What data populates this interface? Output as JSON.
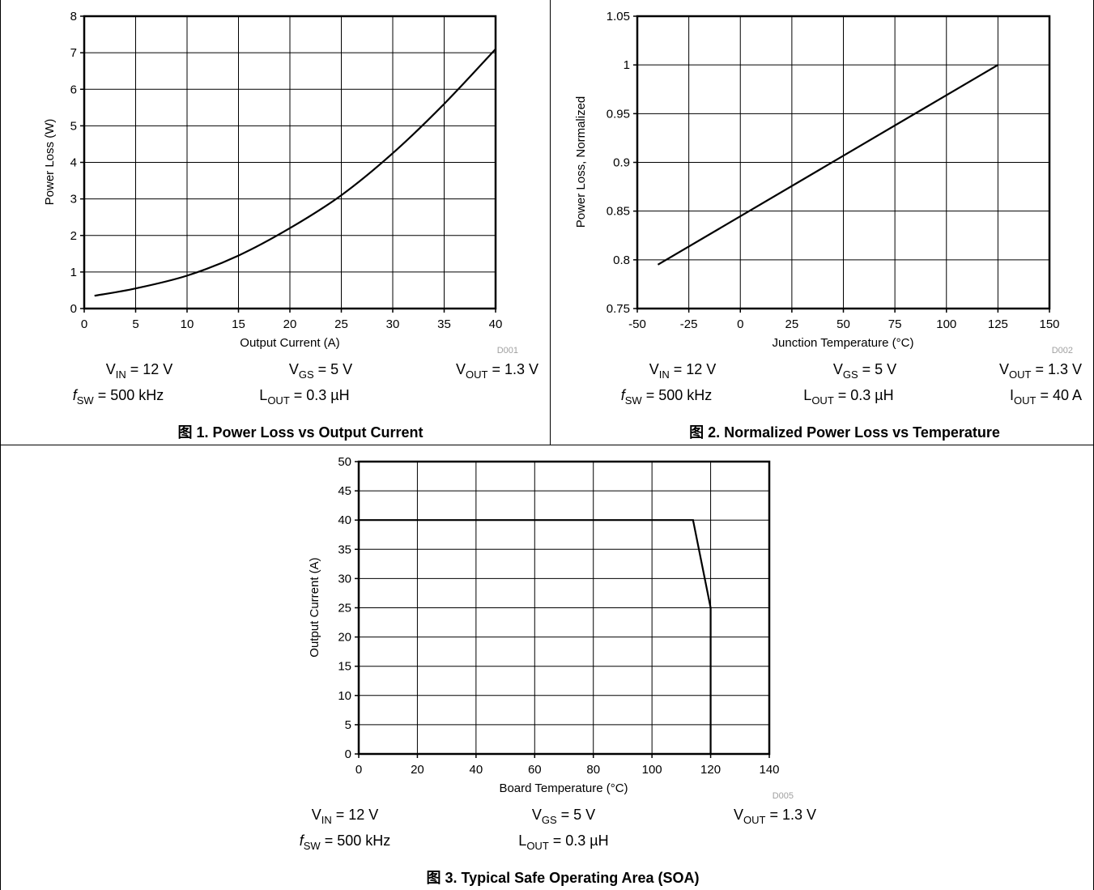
{
  "figures": [
    {
      "code": "D001",
      "caption": "图 1. Power Loss vs Output Current",
      "conditions": [
        {
          "main": "V",
          "sub": "IN",
          "rest": " = 12 V"
        },
        {
          "main": "V",
          "sub": "GS",
          "rest": " = 5 V"
        },
        {
          "main": "V",
          "sub": "OUT",
          "rest": " = 1.3 V"
        },
        {
          "main": "f",
          "sub": "SW",
          "rest": " = 500 kHz",
          "italic": true
        },
        {
          "main": "L",
          "sub": "OUT",
          "rest": " = 0.3 µH"
        }
      ]
    },
    {
      "code": "D002",
      "caption": "图 2. Normalized Power Loss vs Temperature",
      "conditions": [
        {
          "main": "V",
          "sub": "IN",
          "rest": " = 12 V"
        },
        {
          "main": "V",
          "sub": "GS",
          "rest": " = 5 V"
        },
        {
          "main": "V",
          "sub": "OUT",
          "rest": " = 1.3 V"
        },
        {
          "main": "f",
          "sub": "SW",
          "rest": " = 500 kHz",
          "italic": true
        },
        {
          "main": "L",
          "sub": "OUT",
          "rest": " = 0.3 µH"
        },
        {
          "main": "I",
          "sub": "OUT",
          "rest": " = 40 A"
        }
      ]
    },
    {
      "code": "D005",
      "caption": "图 3. Typical Safe Operating Area (SOA)",
      "conditions": [
        {
          "main": "V",
          "sub": "IN",
          "rest": " = 12 V"
        },
        {
          "main": "V",
          "sub": "GS",
          "rest": " = 5 V"
        },
        {
          "main": "V",
          "sub": "OUT",
          "rest": " = 1.3 V"
        },
        {
          "main": "f",
          "sub": "SW",
          "rest": " = 500 kHz",
          "italic": true
        },
        {
          "main": "L",
          "sub": "OUT",
          "rest": " = 0.3 µH"
        }
      ]
    }
  ],
  "chart_data": [
    {
      "type": "line",
      "title": "",
      "xlabel": "Output Current (A)",
      "ylabel": "Power Loss (W)",
      "xlim": [
        0,
        40
      ],
      "ylim": [
        0,
        8
      ],
      "xticks": [
        "0",
        "5",
        "10",
        "15",
        "20",
        "25",
        "30",
        "35",
        "40"
      ],
      "yticks": [
        "0",
        "1",
        "2",
        "3",
        "4",
        "5",
        "6",
        "7",
        "8"
      ],
      "grid": true,
      "series": [
        {
          "x": [
            1,
            5,
            10,
            15,
            20,
            25,
            30,
            35,
            40
          ],
          "y": [
            0.35,
            0.55,
            0.9,
            1.45,
            2.2,
            3.1,
            4.25,
            5.6,
            7.1
          ]
        }
      ]
    },
    {
      "type": "line",
      "title": "",
      "xlabel": "Junction Temperature (°C)",
      "ylabel": "Power Loss, Normalized",
      "xlim": [
        -50,
        150
      ],
      "ylim": [
        0.75,
        1.05
      ],
      "xticks": [
        "-50",
        "-25",
        "0",
        "25",
        "50",
        "75",
        "100",
        "125",
        "150"
      ],
      "yticks": [
        "0.75",
        "0.8",
        "0.85",
        "0.9",
        "0.95",
        "1",
        "1.05"
      ],
      "grid": true,
      "series": [
        {
          "x": [
            -40,
            125
          ],
          "y": [
            0.795,
            1.0
          ]
        }
      ]
    },
    {
      "type": "line",
      "title": "",
      "xlabel": "Board Temperature (°C)",
      "ylabel": "Output Current (A)",
      "xlim": [
        0,
        140
      ],
      "ylim": [
        0,
        50
      ],
      "xticks": [
        "0",
        "20",
        "40",
        "60",
        "80",
        "100",
        "120",
        "140"
      ],
      "yticks": [
        "0",
        "5",
        "10",
        "15",
        "20",
        "25",
        "30",
        "35",
        "40",
        "45",
        "50"
      ],
      "grid": true,
      "series": [
        {
          "x": [
            0,
            114,
            120,
            120
          ],
          "y": [
            40,
            40,
            25,
            0
          ]
        }
      ]
    }
  ]
}
